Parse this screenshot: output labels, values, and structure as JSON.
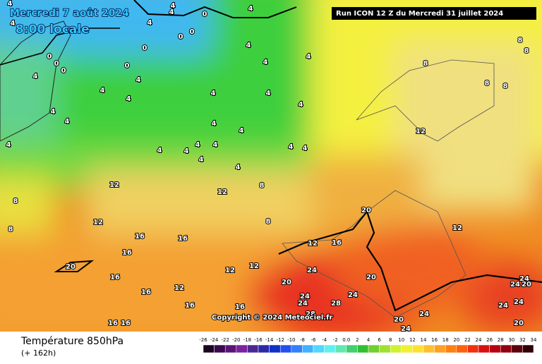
{
  "header": {
    "date": "Mercredi 7 août 2024",
    "time": "8:00 locale",
    "run": "Run ICON 12 Z du Mercredi 31 juillet 2024",
    "copyright": "Copyright © 2024 Meteociel.fr"
  },
  "footer": {
    "title": "Température 850hPa",
    "subtitle": "(+ 162h)"
  },
  "legend": {
    "ticks": [
      "-26",
      "-24",
      "-22",
      "-20",
      "-18",
      "-16",
      "-14",
      "-12",
      "-10",
      "-8",
      "-6",
      "-4",
      "-2",
      "0.0",
      "2",
      "4",
      "6",
      "8",
      "10",
      "12",
      "14",
      "16",
      "18",
      "20",
      "22",
      "24",
      "26",
      "28",
      "30",
      "32",
      "34"
    ]
  },
  "map_labels": [
    "4",
    "4",
    "4",
    "4",
    "0",
    "4",
    "4",
    "0",
    "0",
    "0",
    "0",
    "0",
    "0",
    "0",
    "4",
    "4",
    "4",
    "4",
    "4",
    "4",
    "4",
    "4",
    "4",
    "4",
    "4",
    "4",
    "4",
    "4",
    "4",
    "4",
    "4",
    "4",
    "4",
    "4",
    "4",
    "4",
    "4",
    "8",
    "12",
    "8",
    "12",
    "12",
    "8",
    "16",
    "16",
    "16",
    "12",
    "16",
    "20",
    "16",
    "12",
    "12",
    "24",
    "20",
    "20",
    "24",
    "12",
    "16",
    "24",
    "28",
    "24",
    "16",
    "16",
    "28",
    "20",
    "24",
    "24",
    "24",
    "24",
    "24",
    "24",
    "20",
    "20",
    "20",
    "12",
    "12",
    "8",
    "8",
    "8",
    "8",
    "8",
    "16",
    "16",
    "8"
  ]
}
